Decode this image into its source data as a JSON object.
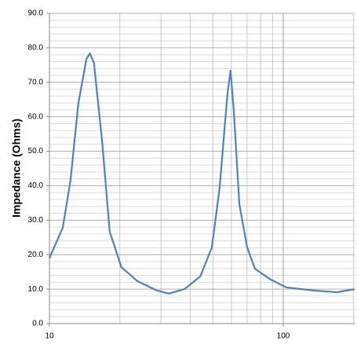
{
  "chart_data": {
    "type": "line",
    "y_label": "Impedance (Ohms)",
    "x_scale": "log",
    "grid": true,
    "xlim": [
      10,
      202
    ],
    "xticks": [
      10,
      100
    ],
    "x_minor_ticks": [
      20,
      30,
      40,
      50,
      60,
      70,
      80,
      90,
      200
    ],
    "ylim": [
      0,
      90
    ],
    "yticks": [
      {
        "value": 0,
        "label": "0.0"
      },
      {
        "value": 10,
        "label": "10.0"
      },
      {
        "value": 20,
        "label": "20.0"
      },
      {
        "value": 30,
        "label": "30.0"
      },
      {
        "value": 40,
        "label": "40.0"
      },
      {
        "value": 50,
        "label": "50.0"
      },
      {
        "value": 60,
        "label": "60.0"
      },
      {
        "value": 70,
        "label": "70.0"
      },
      {
        "value": 80,
        "label": "80.0"
      },
      {
        "value": 90,
        "label": "90.0"
      }
    ],
    "y_minor_ticks": [
      2,
      4,
      6,
      8,
      12,
      14,
      16,
      18,
      22,
      24,
      26,
      28,
      32,
      34,
      36,
      38,
      42,
      44,
      46,
      48,
      52,
      54,
      56,
      58,
      62,
      64,
      66,
      68,
      72,
      74,
      76,
      78,
      82,
      84,
      86,
      88
    ],
    "series": [
      {
        "color": "#4f81bd",
        "x": [
          10,
          11.4,
          12.3,
          13.3,
          14.4,
          14.9,
          15.5,
          16.8,
          18.1,
          20.3,
          23.8,
          28.8,
          32.4,
          37.8,
          44.2,
          49.5,
          53.4,
          57.7,
          59.5,
          61.4,
          64.9,
          70.1,
          75.7,
          88.2,
          103,
          135,
          170,
          202
        ],
        "values": [
          19,
          27.8,
          41.5,
          64,
          76.8,
          78.4,
          75.6,
          52.9,
          26.7,
          16.4,
          12.3,
          9.6,
          8.7,
          10,
          13.7,
          22.1,
          39.2,
          66.5,
          73.4,
          62,
          34.6,
          22.1,
          15.9,
          12.8,
          10.5,
          9.6,
          9.1,
          10
        ]
      }
    ]
  }
}
